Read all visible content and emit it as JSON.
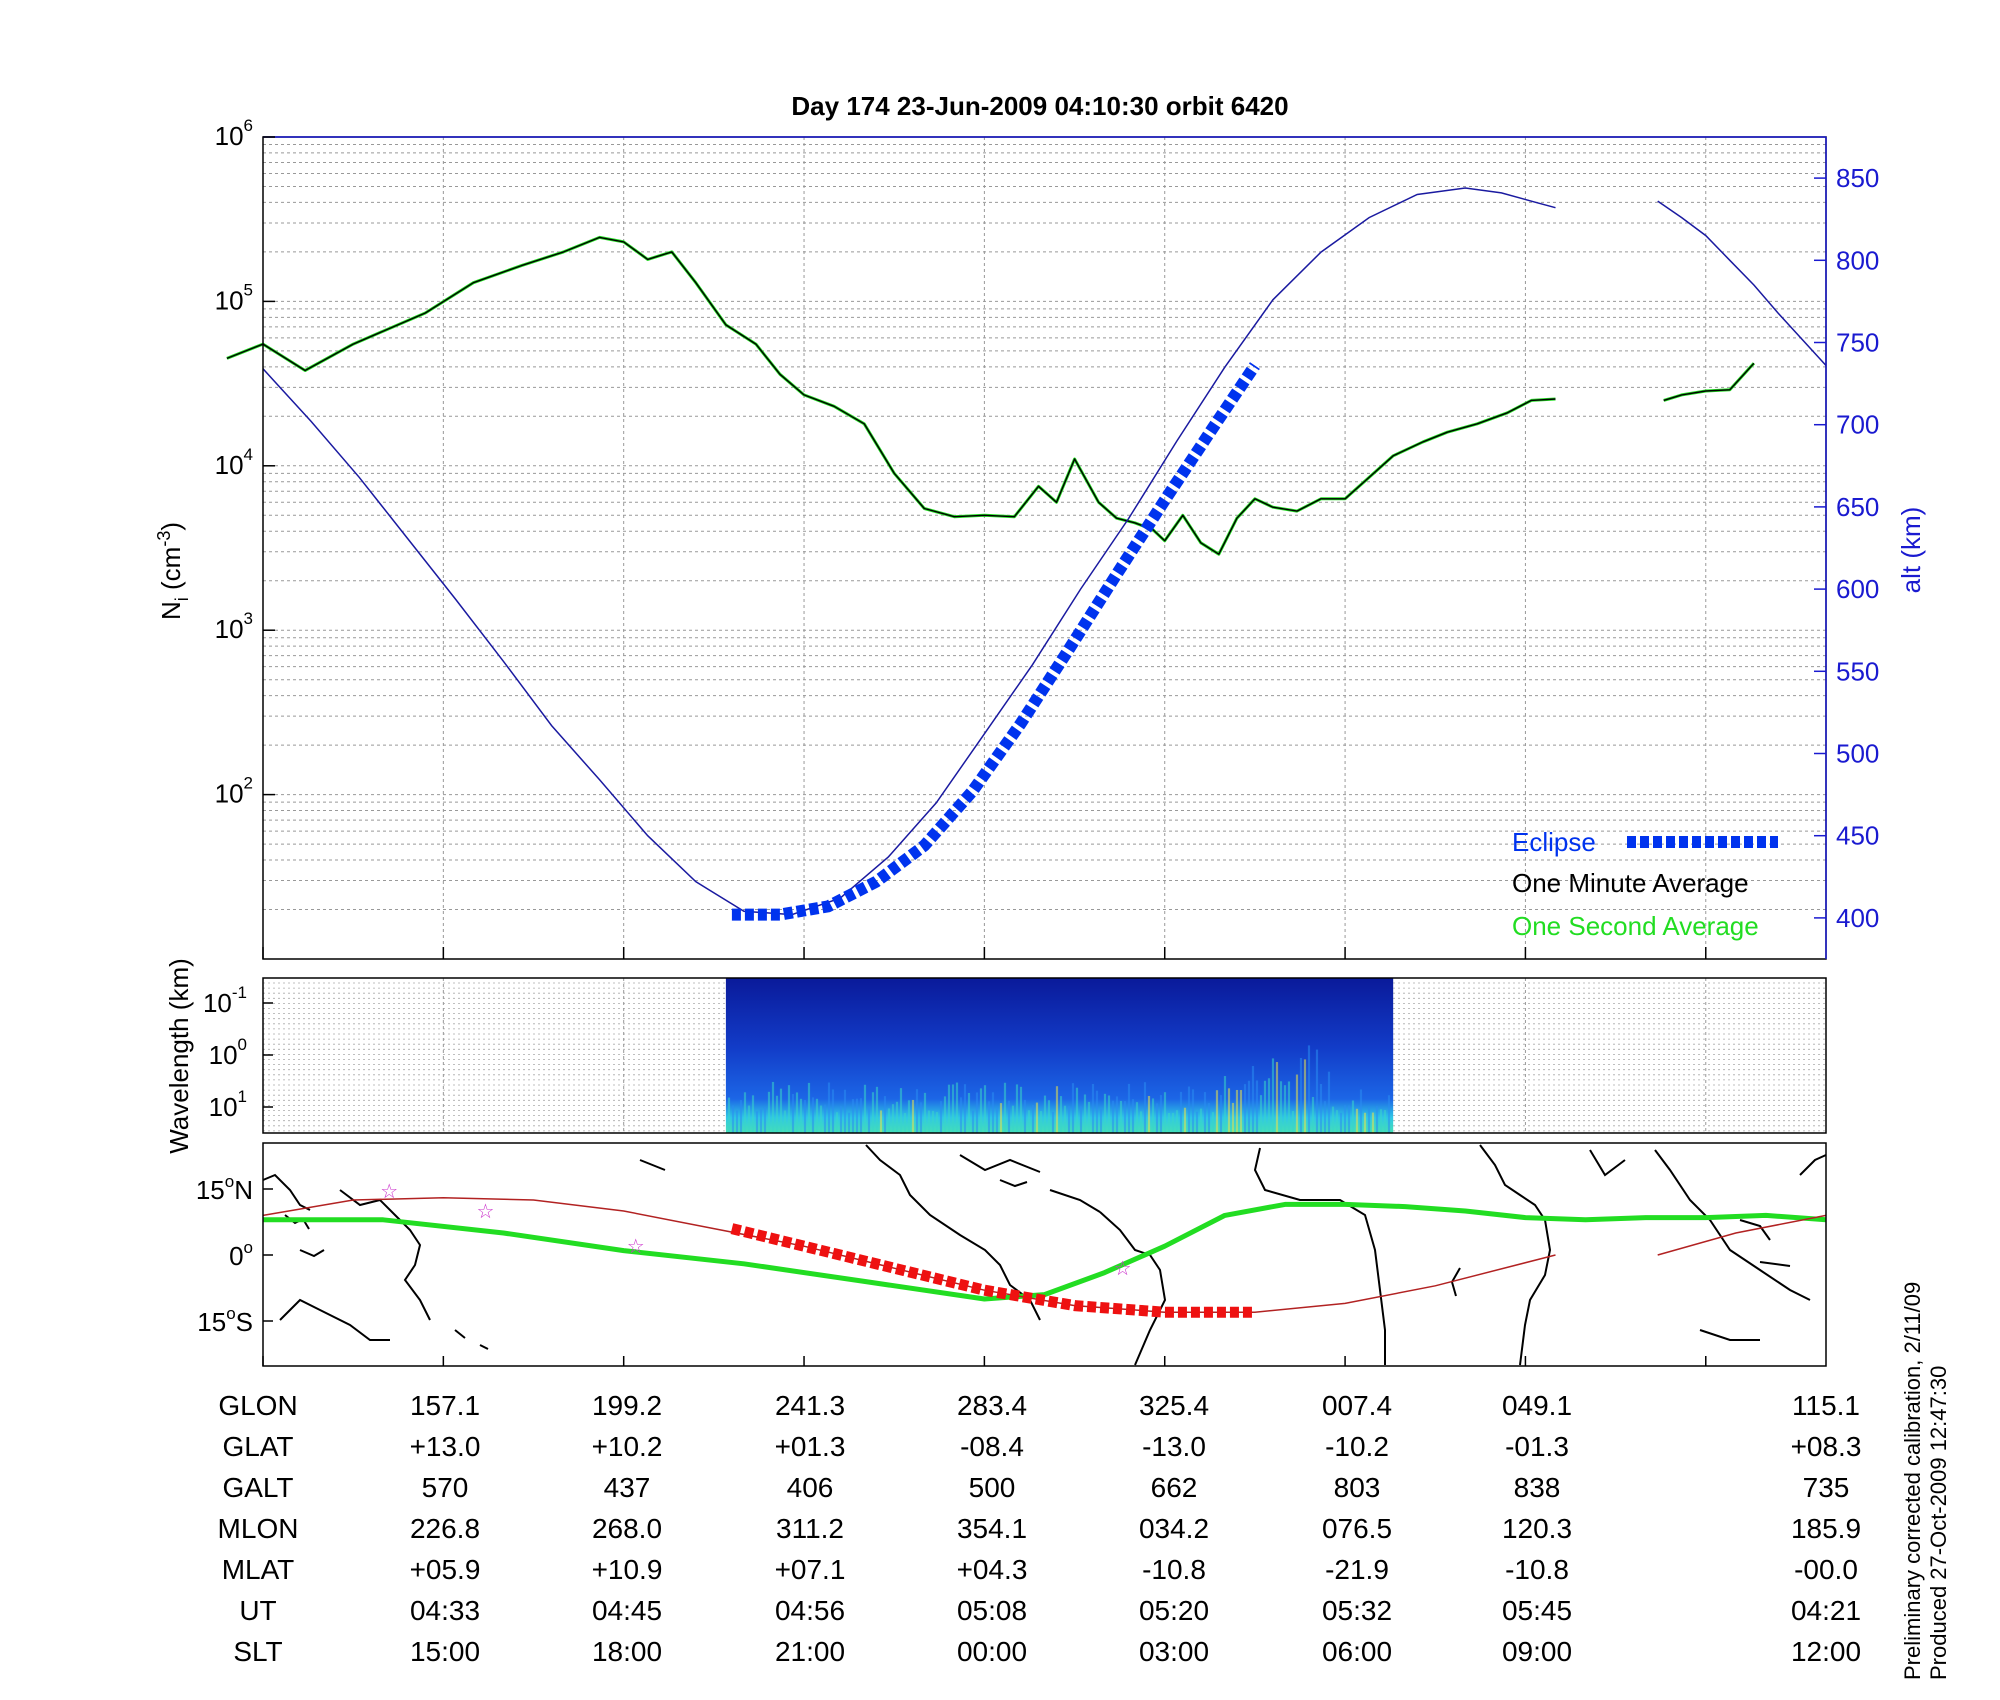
{
  "chart_data": [
    {
      "type": "line",
      "title": "Day 174  23-Jun-2009 04:10:30   orbit 6420",
      "ylabel": "N",
      "ylabel_sub": "i",
      "ylabel_unit_a": " (cm",
      "ylabel_unit_sup": "-3",
      "ylabel_unit_b": ")",
      "y_scale": "log",
      "ylim": [
        10,
        1000000
      ],
      "y_ticks": [
        {
          "base": "10",
          "exp": "2"
        },
        {
          "base": "10",
          "exp": "3"
        },
        {
          "base": "10",
          "exp": "4"
        },
        {
          "base": "10",
          "exp": "5"
        },
        {
          "base": "10",
          "exp": "6"
        }
      ],
      "y2label": "alt (km)",
      "y2lim": [
        375,
        875
      ],
      "y2_ticks": [
        "400",
        "450",
        "500",
        "550",
        "600",
        "650",
        "700",
        "750",
        "800",
        "850"
      ],
      "grid": true,
      "legend_position": "bottom-right",
      "legend": [
        {
          "label": "Eclipse",
          "color": "#0033ee"
        },
        {
          "label": "One Minute Average",
          "color": "#000000"
        },
        {
          "label": "One Second Average",
          "color": "#22dd22"
        }
      ],
      "x_slt_hours": [
        12,
        15,
        18,
        21,
        24,
        27,
        30,
        33,
        36
      ],
      "series": [
        {
          "name": "One Minute Average",
          "color": "#000000",
          "segments": [
            {
              "x": [
                11.4,
                12.0,
                12.7,
                13.5,
                14.7,
                15.5,
                16.3,
                17.0,
                17.6,
                18.0,
                18.4,
                18.8,
                19.2,
                19.7,
                20.2,
                20.6,
                21.0,
                21.5,
                22.0,
                22.5,
                23.0,
                23.5,
                24.0,
                24.5,
                24.9,
                25.2,
                25.5,
                25.9,
                26.2,
                26.5,
                26.8,
                27.0,
                27.3,
                27.6,
                27.9,
                28.2,
                28.5,
                28.8,
                29.2,
                29.6,
                30.0,
                30.4,
                30.8,
                31.3,
                31.7,
                32.2,
                32.7,
                33.1,
                33.5
              ],
              "y": [
                45000,
                55000,
                38000,
                55000,
                85000,
                130000,
                165000,
                200000,
                245000,
                230000,
                180000,
                200000,
                130000,
                72000,
                55000,
                36000,
                27000,
                23000,
                18000,
                9000,
                5500,
                4900,
                5000,
                4900,
                7500,
                6000,
                11000,
                6000,
                4800,
                4500,
                4100,
                3500,
                5000,
                3400,
                2900,
                4800,
                6300,
                5600,
                5300,
                6300,
                6300,
                8500,
                11500,
                14000,
                16000,
                18000,
                21000,
                25000,
                25500
              ]
            },
            {
              "x": [
                35.3,
                35.6,
                36.0,
                36.4,
                36.8
              ],
              "y": [
                25000,
                27000,
                28500,
                29000,
                42000
              ]
            }
          ]
        },
        {
          "name": "Altitude",
          "color": "#1a1aa0",
          "axis": "right",
          "segments": [
            {
              "x": [
                12,
                12.8,
                13.6,
                14.4,
                15.2,
                16.0,
                16.8,
                17.6,
                18.4,
                19.2,
                20.0,
                20.8,
                21.6,
                22.4,
                23.2,
                24.0,
                24.8,
                25.6,
                26.4,
                27.2,
                28.0,
                28.8,
                29.6,
                30.4,
                31.2,
                32.0,
                32.6,
                33.2,
                33.5
              ],
              "y": [
                734,
                702,
                668,
                631,
                594,
                556,
                517,
                484,
                450,
                422,
                404,
                402,
                412,
                437,
                470,
                512,
                554,
                600,
                643,
                690,
                735,
                776,
                805,
                826,
                840,
                844,
                841,
                835,
                832
              ]
            },
            {
              "x": [
                35.2,
                35.6,
                36.0,
                36.4,
                36.8,
                37.2,
                37.6,
                38.0
              ],
              "y": [
                836,
                826,
                815,
                800,
                785,
                768,
                752,
                736
              ]
            }
          ]
        },
        {
          "name": "Eclipse",
          "color": "#0033ee",
          "axis": "right",
          "x": [
            19.8,
            20.6,
            21.4,
            22.2,
            23.0,
            23.8,
            24.6,
            25.4,
            26.2,
            27.0,
            27.8,
            28.5
          ],
          "y": [
            402,
            402,
            407,
            422,
            444,
            477,
            518,
            563,
            609,
            654,
            698,
            736
          ]
        }
      ]
    },
    {
      "type": "heatmap",
      "ylabel": "Wavelength (km)",
      "y_ticks": [
        {
          "base": "10",
          "exp": "-1"
        },
        {
          "base": "10",
          "exp": "0"
        },
        {
          "base": "10",
          "exp": "1"
        }
      ],
      "x_range_slt": [
        19.7,
        30.8
      ]
    },
    {
      "type": "line",
      "y_ticks": [
        {
          "value": "15",
          "suffix": "N"
        },
        {
          "value": "0",
          "suffix": ""
        },
        {
          "value": "15",
          "suffix": "S"
        }
      ],
      "series": [
        {
          "name": "Magnetic equator",
          "color": "#22dd22",
          "x": [
            12,
            14,
            16,
            18,
            20,
            22,
            24,
            25,
            26,
            27,
            28,
            29,
            30,
            31,
            32,
            33,
            34,
            35,
            36,
            37,
            38
          ],
          "y": [
            8,
            8,
            5,
            1,
            -2,
            -6,
            -10,
            -9,
            -4,
            2,
            9,
            11.5,
            11.5,
            11,
            10,
            8.5,
            8,
            8.5,
            8.5,
            9,
            8
          ]
        },
        {
          "name": "Ground track",
          "color": "#b22222",
          "segments": [
            {
              "x": [
                12,
                13.5,
                15,
                16.5,
                18,
                19.5,
                21,
                22.5,
                24,
                25.5,
                27,
                28.5,
                30,
                31.5,
                33.5
              ],
              "y": [
                9,
                12.5,
                13,
                12.5,
                10,
                6,
                2,
                -3,
                -8,
                -11.5,
                -13,
                -13,
                -11,
                -7,
                0
              ]
            },
            {
              "x": [
                35.2,
                36.5,
                38
              ],
              "y": [
                0,
                5,
                9
              ]
            }
          ]
        },
        {
          "name": "Eclipse",
          "color": "#ee1111",
          "x": [
            19.8,
            21,
            22.5,
            24,
            25.5,
            27,
            28.5
          ],
          "y": [
            6,
            2,
            -3,
            -8,
            -11.5,
            -13,
            -13
          ]
        }
      ],
      "stars_x": [
        14.1,
        15.7,
        18.2,
        26.3
      ],
      "stars_lat": [
        14.5,
        10,
        2,
        -3
      ]
    }
  ],
  "table": {
    "labels": [
      "GLON",
      "GLAT",
      "GALT",
      "MLON",
      "MLAT",
      "UT",
      "SLT"
    ],
    "columns": [
      [
        "157.1",
        "+13.0",
        "570",
        "226.8",
        "+05.9",
        "04:33",
        "15:00"
      ],
      [
        "199.2",
        "+10.2",
        "437",
        "268.0",
        "+10.9",
        "04:45",
        "18:00"
      ],
      [
        "241.3",
        "+01.3",
        "406",
        "311.2",
        "+07.1",
        "04:56",
        "21:00"
      ],
      [
        "283.4",
        "-08.4",
        "500",
        "354.1",
        "+04.3",
        "05:08",
        "00:00"
      ],
      [
        "325.4",
        "-13.0",
        "662",
        "034.2",
        "-10.8",
        "05:20",
        "03:00"
      ],
      [
        "007.4",
        "-10.2",
        "803",
        "076.5",
        "-21.9",
        "05:32",
        "06:00"
      ],
      [
        "049.1",
        "-01.3",
        "838",
        "120.3",
        "-10.8",
        "05:45",
        "09:00"
      ],
      [
        "115.1",
        "+08.3",
        "735",
        "185.9",
        "-00.0",
        "04:21",
        "12:00"
      ]
    ]
  },
  "notes": {
    "line1": "Preliminary corrected calibration, 2/11/09",
    "line2": "Produced 27-Oct-2009 12:47:30"
  },
  "colors": {
    "axis_blue": "#1a1ad0",
    "grid": "#888888"
  }
}
